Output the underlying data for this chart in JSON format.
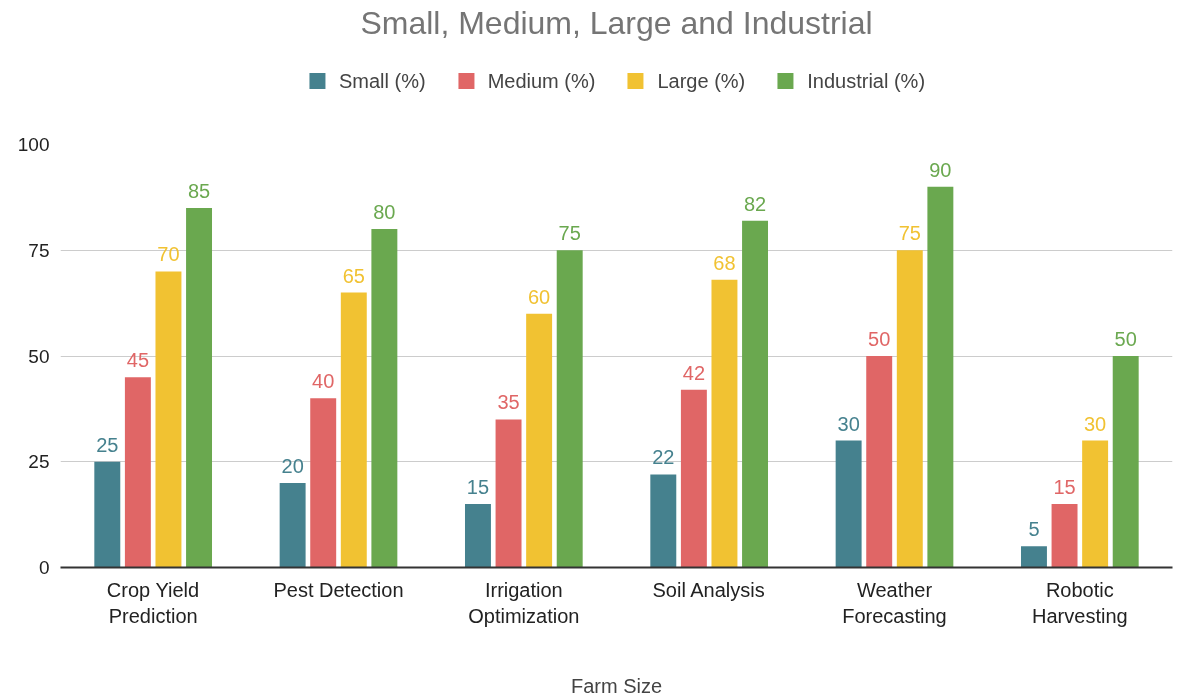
{
  "chart_data": {
    "type": "bar",
    "title": "Small, Medium, Large and Industrial",
    "xlabel": "Farm Size",
    "categories": [
      "Crop Yield Prediction",
      "Pest Detection",
      "Irrigation Optimization",
      "Soil Analysis",
      "Weather Forecasting",
      "Robotic Harvesting"
    ],
    "series": [
      {
        "name": "Small (%)",
        "color": "#45818e",
        "values": [
          25,
          20,
          15,
          22,
          30,
          5
        ]
      },
      {
        "name": "Medium (%)",
        "color": "#e06666",
        "values": [
          45,
          40,
          35,
          42,
          50,
          15
        ]
      },
      {
        "name": "Large (%)",
        "color": "#f1c232",
        "values": [
          70,
          65,
          60,
          68,
          75,
          30
        ]
      },
      {
        "name": "Industrial (%)",
        "color": "#6aa84f",
        "values": [
          85,
          80,
          75,
          82,
          90,
          50
        ]
      }
    ],
    "ylim": [
      0,
      100
    ],
    "yticks": [
      0,
      25,
      50,
      75,
      100
    ],
    "grid": "y",
    "legend": "top",
    "data_labels": true
  }
}
